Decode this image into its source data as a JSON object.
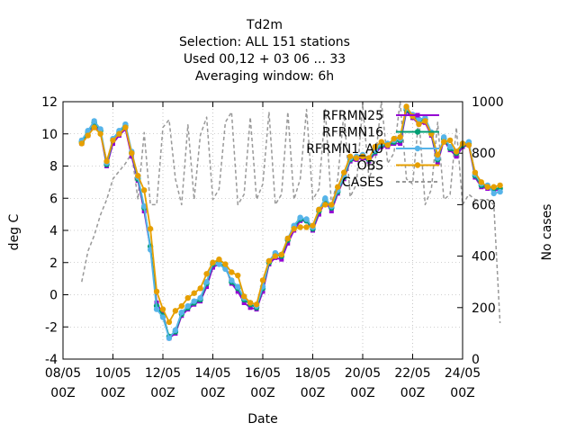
{
  "chart_data": {
    "type": "line",
    "title_lines": [
      "Td2m",
      "Selection: ALL    151 stations",
      "Used  00,12  + 03 06 ... 33",
      "Averaging window:  6h"
    ],
    "xlabel": "Date",
    "ylabel": "deg C",
    "y2label": "No cases",
    "xlim": [
      "08/05 00Z",
      "24/05 00Z"
    ],
    "ylim": [
      -4,
      12
    ],
    "y2lim": [
      0,
      1000
    ],
    "xtick_lines": [
      [
        "08/05",
        "00Z"
      ],
      [
        "10/05",
        "00Z"
      ],
      [
        "12/05",
        "00Z"
      ],
      [
        "14/05",
        "00Z"
      ],
      [
        "16/05",
        "00Z"
      ],
      [
        "18/05",
        "00Z"
      ],
      [
        "20/05",
        "00Z"
      ],
      [
        "22/05",
        "00Z"
      ],
      [
        "24/05",
        "00Z"
      ]
    ],
    "yticks": [
      "-4",
      "-2",
      "0",
      "2",
      "4",
      "6",
      "8",
      "10",
      "12"
    ],
    "y2ticks": [
      "0",
      "200",
      "400",
      "600",
      "800",
      "1000"
    ],
    "grid": true,
    "legend_position": "top-right",
    "x_step_hours": 6,
    "x_start": "08/05 18Z",
    "series": [
      {
        "name": "RFRMN25",
        "color": "#9400d3",
        "marker": "square",
        "values": [
          9.4,
          9.9,
          10.5,
          10.1,
          8.0,
          9.4,
          9.9,
          10.3,
          8.6,
          7.1,
          5.2,
          2.9,
          -0.5,
          -1.2,
          -2.7,
          -2.4,
          -1.3,
          -0.9,
          -0.6,
          -0.4,
          0.5,
          1.7,
          1.9,
          1.8,
          0.7,
          0.2,
          -0.5,
          -0.8,
          -0.9,
          0.2,
          1.9,
          2.3,
          2.2,
          3.2,
          4.0,
          4.6,
          4.6,
          4.0,
          5.0,
          5.8,
          5.2,
          6.3,
          7.2,
          8.3,
          8.4,
          8.5,
          8.3,
          8.8,
          9.2,
          9.2,
          9.4,
          9.4,
          11.4,
          11.0,
          10.6,
          10.7,
          9.9,
          8.2,
          9.6,
          9.0,
          8.6,
          9.2,
          9.3,
          7.3,
          6.7,
          6.6,
          6.5,
          6.5
        ]
      },
      {
        "name": "RFRMN16",
        "color": "#009e73",
        "marker": "circle",
        "values": [
          9.5,
          10.1,
          10.7,
          10.2,
          8.1,
          9.6,
          10.1,
          10.5,
          8.8,
          7.2,
          5.4,
          3.0,
          -0.7,
          -1.3,
          -2.6,
          -2.3,
          -1.2,
          -0.8,
          -0.5,
          -0.3,
          0.7,
          1.9,
          2.0,
          1.7,
          0.8,
          0.4,
          -0.3,
          -0.6,
          -0.8,
          0.4,
          2.0,
          2.5,
          2.4,
          3.4,
          4.2,
          4.7,
          4.6,
          4.1,
          5.2,
          5.9,
          5.4,
          6.4,
          7.3,
          8.4,
          8.5,
          8.6,
          8.4,
          8.9,
          9.3,
          9.3,
          9.5,
          9.6,
          11.5,
          11.1,
          10.8,
          10.9,
          10.0,
          8.4,
          9.7,
          9.1,
          8.8,
          9.3,
          9.4,
          7.4,
          6.8,
          6.7,
          6.6,
          6.6
        ]
      },
      {
        "name": "RFRMN1_AU",
        "color": "#56b4e9",
        "marker": "circle",
        "values": [
          9.6,
          10.2,
          10.8,
          10.3,
          8.2,
          9.7,
          10.2,
          10.6,
          8.9,
          7.3,
          5.5,
          2.8,
          -0.9,
          -1.4,
          -2.7,
          -2.2,
          -1.1,
          -0.7,
          -0.4,
          -0.2,
          0.8,
          2.0,
          1.9,
          1.6,
          0.9,
          0.5,
          -0.2,
          -0.5,
          -0.7,
          0.5,
          2.1,
          2.6,
          2.5,
          3.5,
          4.3,
          4.8,
          4.7,
          4.2,
          5.3,
          6.0,
          5.5,
          6.5,
          7.4,
          8.5,
          8.6,
          8.7,
          8.5,
          9.0,
          9.4,
          9.4,
          9.6,
          9.7,
          11.6,
          11.2,
          10.9,
          11.0,
          10.1,
          8.5,
          9.8,
          9.2,
          8.9,
          9.4,
          9.5,
          7.5,
          6.9,
          6.8,
          6.3,
          6.4
        ]
      },
      {
        "name": "OBS",
        "color": "#e69f00",
        "marker": "circle",
        "values": [
          9.4,
          9.9,
          10.4,
          10.0,
          8.3,
          9.6,
          10.0,
          10.4,
          8.8,
          7.4,
          6.5,
          4.1,
          0.2,
          -0.9,
          -1.7,
          -1.0,
          -0.7,
          -0.2,
          0.1,
          0.4,
          1.3,
          2.0,
          2.2,
          1.9,
          1.4,
          1.2,
          -0.1,
          -0.5,
          -0.6,
          0.9,
          2.1,
          2.4,
          2.5,
          3.5,
          4.1,
          4.2,
          4.2,
          4.3,
          5.3,
          5.6,
          5.6,
          6.7,
          7.6,
          8.6,
          8.5,
          8.6,
          8.5,
          9.2,
          9.5,
          9.3,
          9.7,
          9.8,
          11.7,
          11.1,
          10.6,
          10.8,
          10.0,
          8.7,
          9.5,
          9.6,
          8.9,
          9.4,
          9.3,
          7.6,
          7.0,
          6.7,
          6.7,
          6.8
        ]
      },
      {
        "name": "CASES",
        "color": "#999999",
        "axis": "y2",
        "dash": true,
        "values": [
          300,
          420,
          480,
          560,
          620,
          700,
          730,
          760,
          800,
          620,
          880,
          600,
          600,
          900,
          930,
          700,
          600,
          910,
          620,
          870,
          940,
          620,
          660,
          920,
          960,
          600,
          640,
          940,
          620,
          680,
          960,
          600,
          640,
          960,
          620,
          700,
          970,
          620,
          660,
          970,
          600,
          700,
          960,
          630,
          680,
          990,
          700,
          770,
          1000,
          760,
          800,
          1000,
          700,
          680,
          940,
          600,
          660,
          920,
          620,
          640,
          900,
          600,
          640,
          620,
          620,
          620,
          600,
          140
        ]
      }
    ]
  }
}
